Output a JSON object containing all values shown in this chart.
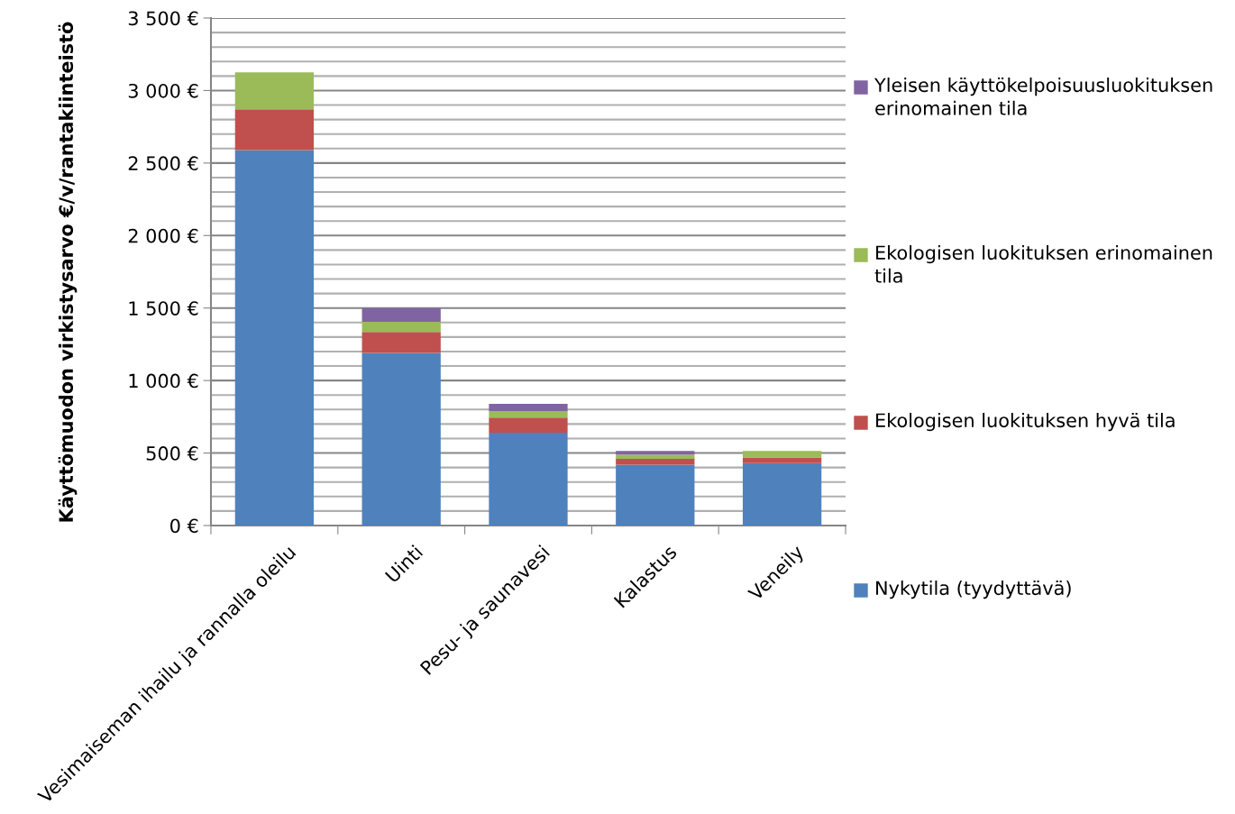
{
  "chart_data": {
    "type": "bar",
    "stacked": true,
    "ylabel": "Käyttömuodon virkistysarvo €/v/rantakiinteistö",
    "categories": [
      "Vesimaiseman ihailu ja rannalla oleilu",
      "Uinti",
      "Pesu- ja saunavesi",
      "Kalastus",
      "Veneily"
    ],
    "series": [
      {
        "name": "Nykytila (tyydyttävä)",
        "color": "#4f81bd",
        "values": [
          2590,
          1190,
          640,
          420,
          430
        ]
      },
      {
        "name": "Ekologisen luokituksen hyvä tila",
        "color": "#c0504d",
        "values": [
          280,
          145,
          105,
          40,
          40
        ]
      },
      {
        "name": "Ekologisen luokituksen erinomainen tila",
        "color": "#9bbb59",
        "values": [
          255,
          70,
          45,
          30,
          45
        ]
      },
      {
        "name": "Yleisen käyttökelpoisuusluokituksen erinomainen tila",
        "color": "#8064a2",
        "values": [
          0,
          95,
          50,
          25,
          0
        ]
      }
    ],
    "ylim": [
      0,
      3500
    ],
    "yticks": [
      {
        "value": 0,
        "label": "0 €"
      },
      {
        "value": 100,
        "label": null
      },
      {
        "value": 200,
        "label": null
      },
      {
        "value": 300,
        "label": null
      },
      {
        "value": 400,
        "label": null
      },
      {
        "value": 500,
        "label": "500 €"
      },
      {
        "value": 600,
        "label": null
      },
      {
        "value": 700,
        "label": null
      },
      {
        "value": 800,
        "label": null
      },
      {
        "value": 900,
        "label": null
      },
      {
        "value": 1000,
        "label": "1 000 €"
      },
      {
        "value": 1100,
        "label": null
      },
      {
        "value": 1200,
        "label": null
      },
      {
        "value": 1300,
        "label": null
      },
      {
        "value": 1400,
        "label": null
      },
      {
        "value": 1500,
        "label": "1 500 €"
      },
      {
        "value": 1600,
        "label": null
      },
      {
        "value": 1700,
        "label": null
      },
      {
        "value": 1800,
        "label": null
      },
      {
        "value": 1900,
        "label": null
      },
      {
        "value": 2000,
        "label": "2 000 €"
      },
      {
        "value": 2100,
        "label": null
      },
      {
        "value": 2200,
        "label": null
      },
      {
        "value": 2300,
        "label": null
      },
      {
        "value": 2400,
        "label": null
      },
      {
        "value": 2500,
        "label": "2 500 €"
      },
      {
        "value": 2600,
        "label": null
      },
      {
        "value": 2700,
        "label": null
      },
      {
        "value": 2800,
        "label": null
      },
      {
        "value": 2900,
        "label": null
      },
      {
        "value": 3000,
        "label": "3 000 €"
      },
      {
        "value": 3100,
        "label": null
      },
      {
        "value": 3200,
        "label": null
      },
      {
        "value": 3300,
        "label": null
      },
      {
        "value": 3400,
        "label": null
      },
      {
        "value": 3500,
        "label": "3 500 €"
      }
    ],
    "grid": "y",
    "legend": "right"
  }
}
